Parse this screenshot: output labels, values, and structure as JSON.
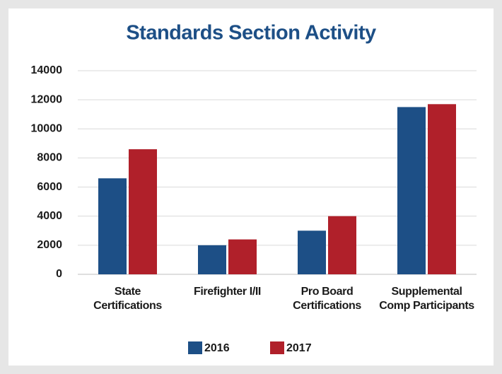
{
  "chart_data": {
    "type": "bar",
    "title": "Standards Section Activity",
    "categories": [
      "State\nCertifications",
      "Firefighter I/II",
      "Pro Board\nCertifications",
      "Supplemental\nComp Participants"
    ],
    "series": [
      {
        "name": "2016",
        "color": "#1d4f86",
        "values": [
          6600,
          2000,
          3000,
          11500
        ]
      },
      {
        "name": "2017",
        "color": "#b0202a",
        "values": [
          8600,
          2400,
          4000,
          11700
        ]
      }
    ],
    "ylim": [
      0,
      14000
    ],
    "yticks": [
      0,
      2000,
      4000,
      6000,
      8000,
      10000,
      12000,
      14000
    ],
    "grid": true,
    "legend": "bottom"
  }
}
